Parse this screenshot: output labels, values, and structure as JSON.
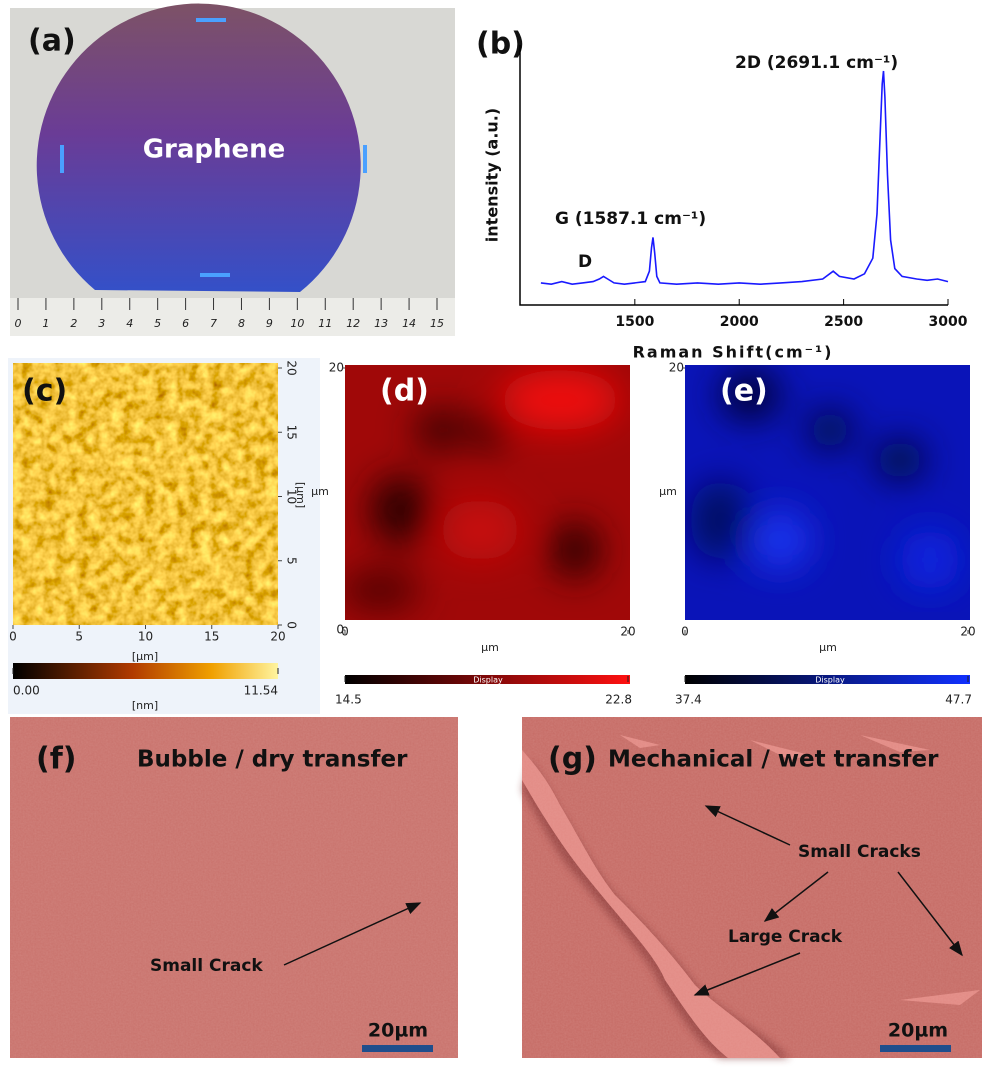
{
  "panels": {
    "a": {
      "label": "(a)",
      "text": "Graphene",
      "ruler_ticks": [
        0,
        1,
        2,
        3,
        4,
        5,
        6,
        7,
        8,
        9,
        10,
        11,
        12,
        13,
        14,
        15
      ]
    },
    "b": {
      "label": "(b)"
    },
    "c": {
      "label": "(c)",
      "xticks": [
        0,
        5,
        10,
        15,
        20
      ],
      "yticks": [
        0,
        5,
        10,
        15,
        20
      ],
      "x_unit": "[µm]",
      "y_unit": "[µm]",
      "colorbar": [
        {
          "value": 0,
          "label": "0.00"
        },
        11.54
      ],
      "colorbar_unit": "[nm]"
    },
    "d": {
      "label": "(d)",
      "xticks": [
        0,
        20
      ],
      "yticks": [
        0,
        20
      ],
      "x_unit": "µm",
      "y_unit": "µm",
      "colorbar_title": "Display",
      "colorbar": [
        14.5,
        22.8
      ]
    },
    "e": {
      "label": "(e)",
      "xticks": [
        0,
        20
      ],
      "y_unit": "µm",
      "x_unit": "µm",
      "yticks": [
        20
      ],
      "colorbar_title": "Display",
      "colorbar": [
        37.4,
        47.7
      ]
    },
    "f": {
      "label": "(f)",
      "title": "Bubble / dry transfer",
      "annotation": "Small Crack",
      "scale_bar": "20µm"
    },
    "g": {
      "label": "(g)",
      "title": "Mechanical / wet transfer",
      "annotations": [
        "Small Cracks",
        "Large Crack"
      ],
      "scale_bar": "20µm"
    }
  },
  "chart_data": {
    "type": "line",
    "x_label": "Raman Shift(cm⁻¹)",
    "y_label": "intensity (a.u.)",
    "annotations": [
      "2D (2691.1 cm⁻¹)",
      "G (1587.1 cm⁻¹)",
      "D"
    ],
    "color": "#1a1aff",
    "xlim": [
      950,
      3000
    ],
    "ylim": [
      0,
      100
    ],
    "xticks": [
      1500,
      2000,
      2500,
      3000
    ],
    "x": [
      1050,
      1100,
      1150,
      1200,
      1250,
      1300,
      1330,
      1350,
      1370,
      1400,
      1450,
      1500,
      1550,
      1570,
      1580,
      1587,
      1595,
      1605,
      1620,
      1700,
      1800,
      1900,
      2000,
      2100,
      2200,
      2300,
      2400,
      2450,
      2480,
      2550,
      2600,
      2640,
      2660,
      2675,
      2685,
      2691,
      2698,
      2710,
      2725,
      2745,
      2780,
      2850,
      2900,
      2950,
      3000
    ],
    "values": [
      8.5,
      8,
      9,
      8,
      8.5,
      9,
      10,
      11,
      10,
      8.5,
      8,
      8.5,
      9,
      13,
      22,
      26,
      20,
      11,
      8.5,
      8,
      8.5,
      8,
      8.5,
      8,
      8.5,
      9,
      10,
      13,
      11,
      10,
      12,
      18,
      35,
      65,
      85,
      90,
      80,
      50,
      25,
      14,
      11,
      10,
      9.5,
      10,
      9
    ]
  }
}
